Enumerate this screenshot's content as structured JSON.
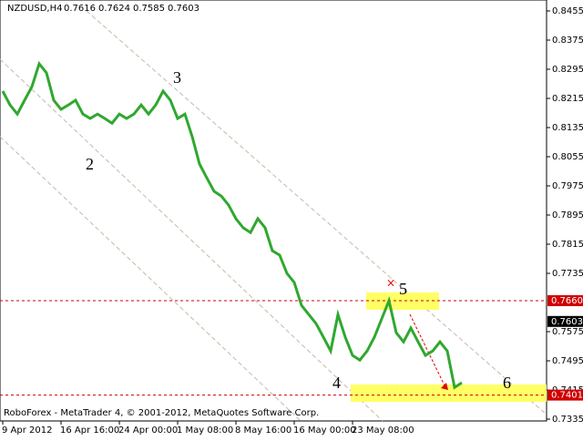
{
  "chart_data": {
    "type": "line",
    "title": "NZDUSD,H4",
    "ohlc": [
      0.7616,
      0.7624,
      0.7585,
      0.7603
    ],
    "footer": "RoboForex - MetaTrader 4, © 2001-2012, MetaQuotes Software Corp.",
    "categories": [
      "9 Apr 2012",
      null,
      null,
      null,
      null,
      null,
      null,
      null,
      "16 Apr 16:00",
      null,
      null,
      null,
      null,
      null,
      null,
      null,
      "24 Apr 00:00",
      null,
      null,
      null,
      null,
      null,
      null,
      null,
      "1 May 08:00",
      null,
      null,
      null,
      null,
      null,
      null,
      null,
      "8 May 16:00",
      null,
      null,
      null,
      null,
      null,
      null,
      null,
      "16 May 00:00",
      null,
      null,
      null,
      null,
      null,
      null,
      null,
      "23 May 08:00",
      null,
      null,
      null,
      null,
      null,
      null,
      null,
      null,
      null,
      null,
      null,
      null,
      null,
      null,
      null
    ],
    "series": [
      {
        "name": "NZDUSD",
        "color": "#2fa82f",
        "values": [
          0.8235,
          0.8197,
          0.8172,
          0.821,
          0.8247,
          0.831,
          0.8285,
          0.821,
          0.8185,
          0.8197,
          0.821,
          0.8172,
          0.816,
          0.8172,
          0.816,
          0.8147,
          0.8172,
          0.816,
          0.8172,
          0.8197,
          0.8172,
          0.8197,
          0.8235,
          0.821,
          0.816,
          0.8172,
          0.811,
          0.8035,
          0.7997,
          0.796,
          0.7947,
          0.7922,
          0.7885,
          0.786,
          0.7847,
          0.7885,
          0.786,
          0.7797,
          0.7785,
          0.7735,
          0.771,
          0.7647,
          0.7622,
          0.7597,
          0.756,
          0.7522,
          0.7622,
          0.756,
          0.751,
          0.7497,
          0.7522,
          0.756,
          0.761,
          0.766,
          0.7572,
          0.7547,
          0.7585,
          0.7547,
          0.751,
          0.7522,
          0.7547,
          0.7522,
          0.7422,
          0.7435
        ]
      }
    ],
    "ylim": [
      0.733,
      0.8485
    ],
    "yticks": [
      0.8455,
      0.8375,
      0.8295,
      0.8215,
      0.8135,
      0.8055,
      0.7975,
      0.7895,
      0.7815,
      0.7735,
      0.7575,
      0.7495,
      0.7415,
      0.7335
    ],
    "levels": [
      {
        "value": 0.766,
        "label": "0.7660"
      },
      {
        "value": 0.7401,
        "label": "0.7401"
      }
    ],
    "level_color": "#d00000",
    "current_price": 0.7603,
    "annotations": [
      "2",
      "3",
      "4",
      "5",
      "6"
    ]
  }
}
